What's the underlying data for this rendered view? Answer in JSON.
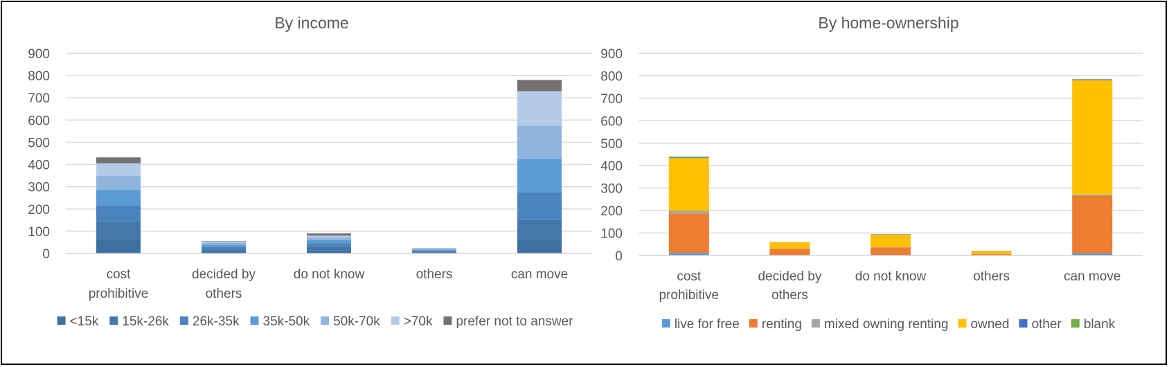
{
  "chart_data": [
    {
      "type": "bar",
      "stacked": true,
      "title": "By income",
      "categories": [
        "cost prohibitive",
        "decided by others",
        "do not know",
        "others",
        "can move"
      ],
      "ylim": [
        0,
        900
      ],
      "yticks": [
        0,
        100,
        200,
        300,
        400,
        500,
        600,
        700,
        800,
        900
      ],
      "grid": true,
      "legend_position": "bottom",
      "series": [
        {
          "name": "<15k",
          "color": "#3e6f9e",
          "values": [
            65,
            10,
            15,
            5,
            65
          ]
        },
        {
          "name": "15k-26k",
          "color": "#4577ab",
          "values": [
            75,
            10,
            15,
            4,
            85
          ]
        },
        {
          "name": "26k-35k",
          "color": "#4a83be",
          "values": [
            75,
            10,
            15,
            4,
            125
          ]
        },
        {
          "name": "35k-50k",
          "color": "#5a9bd5",
          "values": [
            70,
            10,
            15,
            5,
            150
          ]
        },
        {
          "name": "50k-70k",
          "color": "#8fb4de",
          "values": [
            65,
            8,
            12,
            3,
            150
          ]
        },
        {
          "name": ">70k",
          "color": "#b4cbe7",
          "values": [
            55,
            5,
            8,
            2,
            155
          ]
        },
        {
          "name": "prefer not to answer",
          "color": "#767171",
          "values": [
            27,
            2,
            10,
            1,
            50
          ]
        }
      ]
    },
    {
      "type": "bar",
      "stacked": true,
      "title": "By home-ownership",
      "categories": [
        "cost prohibitive",
        "decided by others",
        "do not know",
        "others",
        "can move"
      ],
      "ylim": [
        0,
        900
      ],
      "yticks": [
        0,
        100,
        200,
        300,
        400,
        500,
        600,
        700,
        800,
        900
      ],
      "grid": true,
      "legend_position": "bottom",
      "series": [
        {
          "name": "live for free",
          "color": "#5b9bd5",
          "values": [
            12,
            2,
            3,
            1,
            10
          ]
        },
        {
          "name": "renting",
          "color": "#ed7d31",
          "values": [
            175,
            28,
            33,
            5,
            255
          ]
        },
        {
          "name": "mixed owning renting",
          "color": "#a5a5a5",
          "values": [
            12,
            1,
            2,
            1,
            5
          ]
        },
        {
          "name": "owned",
          "color": "#ffc000",
          "values": [
            235,
            28,
            55,
            13,
            510
          ]
        },
        {
          "name": "other",
          "color": "#4472c4",
          "values": [
            3,
            1,
            1,
            1,
            3
          ]
        },
        {
          "name": "blank",
          "color": "#70ad47",
          "values": [
            3,
            0,
            1,
            0,
            2
          ]
        }
      ]
    }
  ]
}
